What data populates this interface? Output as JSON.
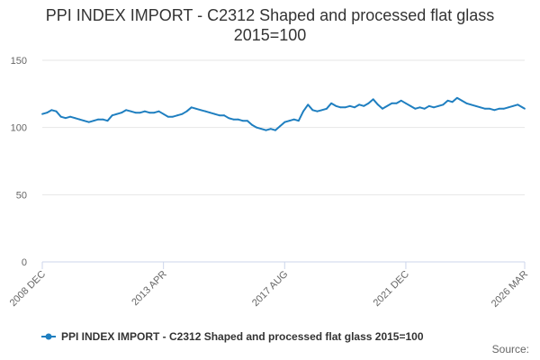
{
  "title_line1": "PPI INDEX IMPORT - C2312 Shaped and processed flat glass",
  "title_line2": "2015=100",
  "source_label": "Source:",
  "colors": {
    "series": "#1f7fc0",
    "grid": "#e6e6e6",
    "axis": "#ccd6eb"
  },
  "chart_data": {
    "type": "line",
    "title": "PPI INDEX IMPORT - C2312 Shaped and processed flat glass 2015=100",
    "xlabel": "",
    "ylabel": "",
    "ylim": [
      0,
      150
    ],
    "yticks": [
      0,
      50,
      100,
      150
    ],
    "xlim": [
      "2008-12",
      "2026-03"
    ],
    "xtick_labels": [
      "2008 DEC",
      "2013 APR",
      "2017 AUG",
      "2021 DEC",
      "2026 MAR"
    ],
    "xtick_values": [
      "2008-12",
      "2013-04",
      "2017-08",
      "2021-12",
      "2026-03"
    ],
    "grid": true,
    "legend_position": "bottom",
    "series": [
      {
        "name": "PPI INDEX IMPORT - C2312 Shaped and processed flat glass 2015=100",
        "points": [
          [
            "2008-12",
            110
          ],
          [
            "2009-02",
            111
          ],
          [
            "2009-04",
            113
          ],
          [
            "2009-06",
            112
          ],
          [
            "2009-08",
            108
          ],
          [
            "2009-10",
            107
          ],
          [
            "2009-12",
            108
          ],
          [
            "2010-02",
            107
          ],
          [
            "2010-04",
            106
          ],
          [
            "2010-06",
            105
          ],
          [
            "2010-08",
            104
          ],
          [
            "2010-10",
            105
          ],
          [
            "2010-12",
            106
          ],
          [
            "2011-02",
            106
          ],
          [
            "2011-04",
            105
          ],
          [
            "2011-06",
            109
          ],
          [
            "2011-08",
            110
          ],
          [
            "2011-10",
            111
          ],
          [
            "2011-12",
            113
          ],
          [
            "2012-02",
            112
          ],
          [
            "2012-04",
            111
          ],
          [
            "2012-06",
            111
          ],
          [
            "2012-08",
            112
          ],
          [
            "2012-10",
            111
          ],
          [
            "2012-12",
            111
          ],
          [
            "2013-02",
            112
          ],
          [
            "2013-04",
            110
          ],
          [
            "2013-06",
            108
          ],
          [
            "2013-08",
            108
          ],
          [
            "2013-10",
            109
          ],
          [
            "2013-12",
            110
          ],
          [
            "2014-02",
            112
          ],
          [
            "2014-04",
            115
          ],
          [
            "2014-06",
            114
          ],
          [
            "2014-08",
            113
          ],
          [
            "2014-10",
            112
          ],
          [
            "2014-12",
            111
          ],
          [
            "2015-02",
            110
          ],
          [
            "2015-04",
            109
          ],
          [
            "2015-06",
            109
          ],
          [
            "2015-08",
            107
          ],
          [
            "2015-10",
            106
          ],
          [
            "2015-12",
            106
          ],
          [
            "2016-02",
            105
          ],
          [
            "2016-04",
            105
          ],
          [
            "2016-06",
            102
          ],
          [
            "2016-08",
            100
          ],
          [
            "2016-10",
            99
          ],
          [
            "2016-12",
            98
          ],
          [
            "2017-02",
            99
          ],
          [
            "2017-04",
            98
          ],
          [
            "2017-06",
            101
          ],
          [
            "2017-08",
            104
          ],
          [
            "2017-10",
            105
          ],
          [
            "2017-12",
            106
          ],
          [
            "2018-02",
            105
          ],
          [
            "2018-04",
            112
          ],
          [
            "2018-06",
            117
          ],
          [
            "2018-08",
            113
          ],
          [
            "2018-10",
            112
          ],
          [
            "2018-12",
            113
          ],
          [
            "2019-02",
            114
          ],
          [
            "2019-04",
            118
          ],
          [
            "2019-06",
            116
          ],
          [
            "2019-08",
            115
          ],
          [
            "2019-10",
            115
          ],
          [
            "2019-12",
            116
          ],
          [
            "2020-02",
            115
          ],
          [
            "2020-04",
            117
          ],
          [
            "2020-06",
            116
          ],
          [
            "2020-08",
            118
          ],
          [
            "2020-10",
            121
          ],
          [
            "2020-12",
            117
          ],
          [
            "2021-02",
            114
          ],
          [
            "2021-04",
            116
          ],
          [
            "2021-06",
            118
          ],
          [
            "2021-08",
            118
          ],
          [
            "2021-10",
            120
          ],
          [
            "2021-12",
            118
          ],
          [
            "2022-02",
            116
          ],
          [
            "2022-04",
            114
          ],
          [
            "2022-06",
            115
          ],
          [
            "2022-08",
            114
          ],
          [
            "2022-10",
            116
          ],
          [
            "2022-12",
            115
          ],
          [
            "2023-02",
            116
          ],
          [
            "2023-04",
            117
          ],
          [
            "2023-06",
            120
          ],
          [
            "2023-08",
            119
          ],
          [
            "2023-10",
            122
          ],
          [
            "2023-12",
            120
          ],
          [
            "2024-02",
            118
          ],
          [
            "2024-04",
            117
          ],
          [
            "2024-06",
            116
          ],
          [
            "2024-08",
            115
          ],
          [
            "2024-10",
            114
          ],
          [
            "2024-12",
            114
          ],
          [
            "2025-02",
            113
          ],
          [
            "2025-04",
            114
          ],
          [
            "2025-06",
            114
          ],
          [
            "2025-08",
            115
          ],
          [
            "2025-10",
            116
          ],
          [
            "2025-12",
            117
          ],
          [
            "2026-02",
            115
          ],
          [
            "2026-03",
            114
          ]
        ]
      }
    ]
  }
}
